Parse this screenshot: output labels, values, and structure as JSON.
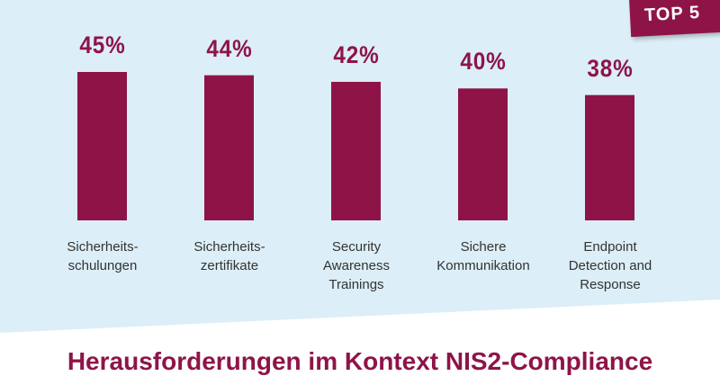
{
  "colors": {
    "bar": "#8e1448",
    "background": "#dceef7",
    "label": "#333333"
  },
  "badge": "TOP 5",
  "heading": "Herausforderungen im Kontext NIS2-Compliance",
  "chart_data": {
    "type": "bar",
    "categories": [
      "Sicherheits-\nschulungen",
      "Sicherheits-\nzertifikate",
      "Security\nAwareness\nTrainings",
      "Sichere\nKommunikation",
      "Endpoint\nDetection and\nResponse"
    ],
    "values": [
      45,
      44,
      42,
      40,
      38
    ],
    "data_labels": [
      "45%",
      "44%",
      "42%",
      "40%",
      "38%"
    ],
    "ylim": [
      0,
      45
    ],
    "grid": false
  }
}
